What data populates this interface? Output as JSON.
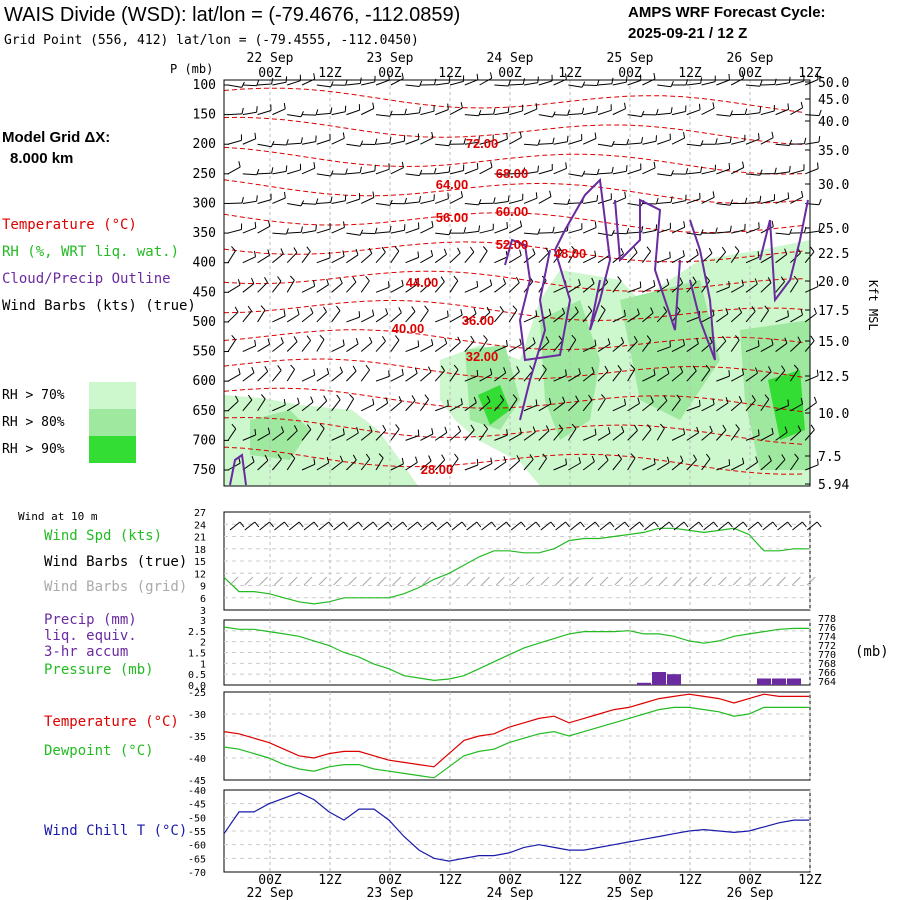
{
  "header": {
    "title": "WAIS Divide (WSD):  lat/lon = (-79.4676, -112.0859)",
    "subtitle": "Grid Point (556, 412) lat/lon = (-79.4555, -112.0450)",
    "cycle_line1": "AMPS WRF Forecast Cycle:",
    "cycle_line2": "2025-09-21 / 12  Z"
  },
  "model_grid": {
    "label": "Model Grid ΔX:",
    "value": "8.000 km"
  },
  "legend_top": {
    "temperature": "Temperature (°C)",
    "rh": "RH (%, WRT liq. wat.)",
    "cloud": "Cloud/Precip Outline",
    "wind": "Wind Barbs (kts) (true)",
    "rh70": "RH > 70%",
    "rh80": "RH > 80%",
    "rh90": "RH > 90%"
  },
  "colors": {
    "temp": "#dd0000",
    "rh70": "#cdf7cd",
    "rh80": "#9fe89f",
    "rh90": "#33dd33",
    "cloud": "#6a2aa0",
    "green": "#22bb22",
    "blue": "#1a1aaa",
    "grid_barb": "#aaaaaa"
  },
  "time_axis": {
    "top_days": [
      "22 Sep",
      "23 Sep",
      "24 Sep",
      "25 Sep",
      "26 Sep"
    ],
    "hours": [
      "00Z",
      "12Z",
      "00Z",
      "12Z",
      "00Z",
      "12Z",
      "00Z",
      "12Z",
      "00Z",
      "12Z"
    ],
    "bottom_days": [
      "22 Sep",
      "23 Sep",
      "24 Sep",
      "25 Sep",
      "26 Sep"
    ]
  },
  "pressure_axis": {
    "label": "P (mb)",
    "levels": [
      "100",
      "150",
      "200",
      "250",
      "300",
      "350",
      "400",
      "450",
      "500",
      "550",
      "600",
      "650",
      "700",
      "750"
    ]
  },
  "height_axis": {
    "label": "Kft MSL",
    "values": [
      "50.0",
      "45.0",
      "40.0",
      "35.0",
      "30.0",
      "25.0",
      "22.5",
      "20.0",
      "17.5",
      "15.0",
      "12.5",
      "10.0",
      "7.5",
      "5.94"
    ]
  },
  "temp_contour_labels": [
    "72.00",
    "68.00",
    "64.00",
    "60.00",
    "56.00",
    "52.00",
    "48.00",
    "44.00",
    "40.00",
    "36.00",
    "32.00",
    "28.00"
  ],
  "panel2": {
    "header": "Wind at 10 m",
    "wind_spd": "Wind Spd (kts)",
    "barbs_true": "Wind Barbs (true)",
    "barbs_grid": "Wind Barbs (grid)",
    "ticks": [
      "27",
      "24",
      "21",
      "18",
      "15",
      "12",
      "9",
      "6",
      "3"
    ]
  },
  "panel3": {
    "precip": "Precip (mm)",
    "liq": "liq. equiv.",
    "accum": "3-hr accum",
    "pressure": "Pressure (mb)",
    "left_ticks": [
      "3",
      "2.5",
      "2",
      "1.5",
      "1",
      "0.5",
      "0.0"
    ],
    "right_ticks": [
      "778",
      "776",
      "774",
      "772",
      "770",
      "768",
      "766",
      "764"
    ],
    "unit": "(mb)"
  },
  "panel4": {
    "temperature": "Temperature (°C)",
    "dewpoint": "Dewpoint (°C)",
    "ticks": [
      "-25",
      "-30",
      "-35",
      "-40",
      "-45"
    ]
  },
  "panel5": {
    "windchill": "Wind Chill T (°C)",
    "ticks": [
      "-40",
      "-45",
      "-50",
      "-55",
      "-60",
      "-65",
      "-70"
    ]
  },
  "chart_data": [
    {
      "type": "line",
      "title": "Wind at 10 m",
      "ylabel": "Wind Spd (kts)",
      "ylim": [
        3,
        27
      ],
      "x_hours": [
        0,
        3,
        6,
        9,
        12,
        15,
        18,
        21,
        24,
        27,
        30,
        33,
        36,
        39,
        42,
        45,
        48,
        51,
        54,
        57,
        60,
        63,
        66,
        69,
        72,
        75,
        78,
        81,
        84,
        87,
        90,
        93,
        96,
        99,
        102,
        105,
        108,
        111,
        114,
        117
      ],
      "series": [
        {
          "name": "Wind Spd (kts)",
          "values": [
            11,
            7.5,
            7.5,
            7,
            6,
            5,
            4.5,
            5,
            6,
            6,
            6,
            6,
            7,
            8.5,
            10.5,
            12,
            14,
            16,
            17.5,
            17.5,
            17,
            17,
            18,
            20,
            20.5,
            20.5,
            21,
            21.5,
            22,
            23,
            23,
            22.5,
            22,
            22.5,
            23,
            21.5,
            17.5,
            17.5,
            18,
            18
          ]
        }
      ]
    },
    {
      "type": "line",
      "title": "Pressure / Precip",
      "ylabel": "Pressure (mb)",
      "ylim": [
        764,
        778
      ],
      "x_hours": [
        0,
        3,
        6,
        9,
        12,
        15,
        18,
        21,
        24,
        27,
        30,
        33,
        36,
        39,
        42,
        45,
        48,
        51,
        54,
        57,
        60,
        63,
        66,
        69,
        72,
        75,
        78,
        81,
        84,
        87,
        90,
        93,
        96,
        99,
        102,
        105,
        108,
        111,
        114,
        117
      ],
      "series": [
        {
          "name": "Pressure (mb)",
          "values": [
            776.5,
            776,
            776,
            775.5,
            775,
            774.5,
            773.5,
            772.5,
            771,
            770,
            768.5,
            767.5,
            766,
            765.5,
            765,
            765.3,
            766,
            767.5,
            769,
            770.5,
            772,
            773,
            774,
            775,
            775.5,
            775.5,
            775.5,
            775.7,
            775,
            775,
            774.5,
            773.5,
            773,
            773.5,
            774.5,
            775,
            775.5,
            776,
            776.2,
            776.2
          ]
        },
        {
          "name": "Precip (mm)",
          "values": [
            0,
            0,
            0,
            0,
            0,
            0,
            0,
            0,
            0,
            0,
            0,
            0,
            0,
            0,
            0,
            0,
            0,
            0,
            0,
            0,
            0,
            0,
            0,
            0,
            0,
            0,
            0,
            0,
            0.1,
            0.6,
            0.5,
            0,
            0,
            0,
            0,
            0,
            0.3,
            0.3,
            0.3,
            0
          ]
        }
      ]
    },
    {
      "type": "line",
      "title": "Temperature / Dewpoint",
      "ylim": [
        -45,
        -25
      ],
      "x_hours": [
        0,
        3,
        6,
        9,
        12,
        15,
        18,
        21,
        24,
        27,
        30,
        33,
        36,
        39,
        42,
        45,
        48,
        51,
        54,
        57,
        60,
        63,
        66,
        69,
        72,
        75,
        78,
        81,
        84,
        87,
        90,
        93,
        96,
        99,
        102,
        105,
        108,
        111,
        114,
        117
      ],
      "series": [
        {
          "name": "Temperature (°C)",
          "values": [
            -34,
            -34.5,
            -35.5,
            -36.5,
            -38,
            -39.5,
            -40,
            -39,
            -38.5,
            -38.5,
            -39.5,
            -40.5,
            -41,
            -41.5,
            -42,
            -39,
            -36,
            -35,
            -34.5,
            -33,
            -32,
            -31,
            -30.5,
            -32,
            -31,
            -30,
            -29,
            -28.5,
            -27.5,
            -26.5,
            -26,
            -25.5,
            -26,
            -26.5,
            -27.5,
            -26.5,
            -25.5,
            -26,
            -26,
            -26
          ]
        },
        {
          "name": "Dewpoint (°C)",
          "values": [
            -37.5,
            -38,
            -39,
            -40,
            -41.5,
            -42.5,
            -43,
            -42,
            -41.5,
            -41.5,
            -42.5,
            -43,
            -43.5,
            -44,
            -44.5,
            -42,
            -39.5,
            -38.5,
            -38,
            -36.5,
            -35.5,
            -34.5,
            -34,
            -35,
            -34,
            -33,
            -32,
            -31,
            -30,
            -29,
            -28.5,
            -28.5,
            -29,
            -29.5,
            -30.5,
            -30,
            -28.5,
            -28.5,
            -28.5,
            -28.5
          ]
        }
      ]
    },
    {
      "type": "line",
      "title": "Wind Chill",
      "ylabel": "Wind Chill T (°C)",
      "ylim": [
        -70,
        -40
      ],
      "x_hours": [
        0,
        3,
        6,
        9,
        12,
        15,
        18,
        21,
        24,
        27,
        30,
        33,
        36,
        39,
        42,
        45,
        48,
        51,
        54,
        57,
        60,
        63,
        66,
        69,
        72,
        75,
        78,
        81,
        84,
        87,
        90,
        93,
        96,
        99,
        102,
        105,
        108,
        111,
        114,
        117
      ],
      "series": [
        {
          "name": "Wind Chill T (°C)",
          "values": [
            -56,
            -48,
            -48,
            -45,
            -43,
            -41,
            -43.5,
            -48,
            -51,
            -47,
            -47,
            -51,
            -57,
            -62,
            -65,
            -66,
            -65,
            -64,
            -64,
            -63,
            -61,
            -60,
            -61,
            -62,
            -62,
            -61,
            -60,
            -59,
            -58,
            -57,
            -56,
            -55,
            -54.5,
            -55,
            -55.5,
            -55,
            -53.5,
            -52,
            -51,
            -51
          ]
        }
      ]
    }
  ]
}
